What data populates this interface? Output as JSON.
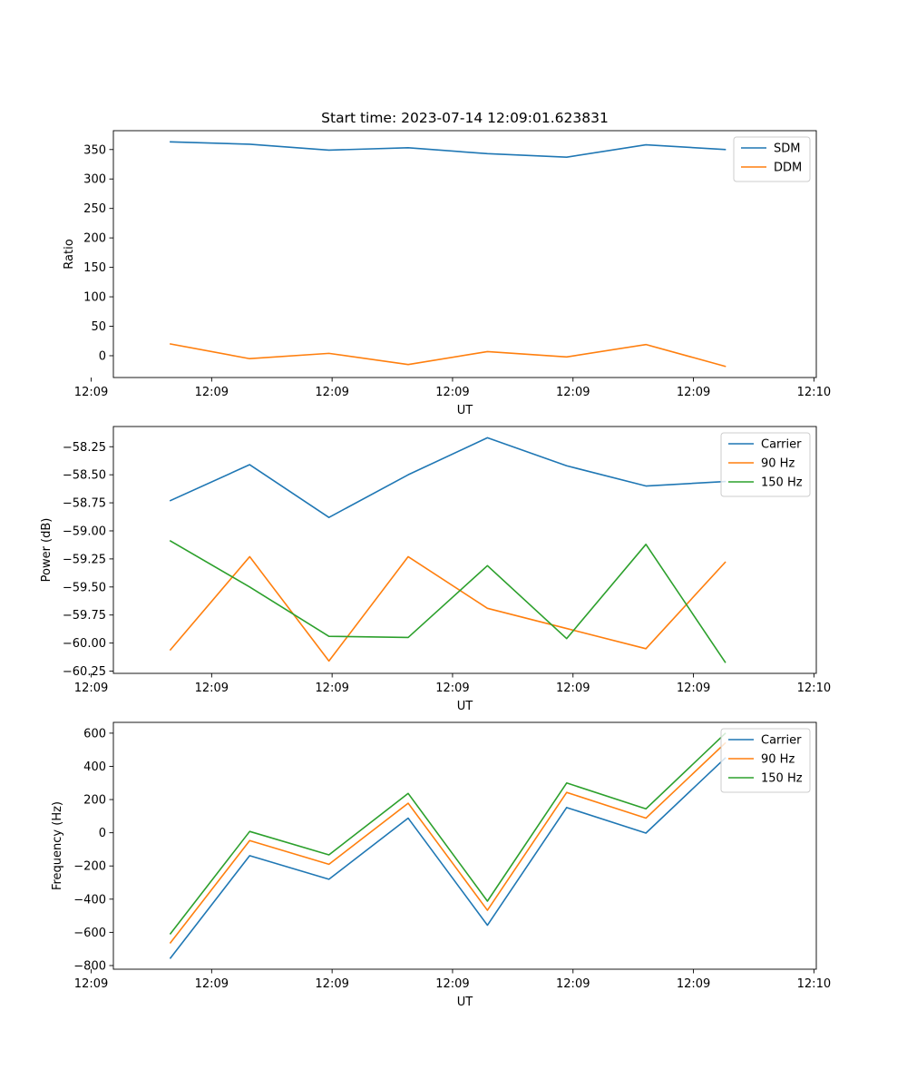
{
  "figure": {
    "title": "Start time: 2023-07-14 12:09:01.623831"
  },
  "colors": {
    "blue": "#1f77b4",
    "orange": "#ff7f0e",
    "green": "#2ca02c"
  },
  "chart_data": [
    {
      "type": "line",
      "title": "Start time: 2023-07-14 12:09:01.623831",
      "xlabel": "UT",
      "ylabel": "Ratio",
      "x": [
        1,
        2,
        3,
        4,
        5,
        6,
        7,
        8
      ],
      "xlim": [
        0.28,
        9.15
      ],
      "xticks": [
        {
          "value": 0,
          "label": "12:09"
        },
        {
          "value": 1.52,
          "label": "12:09"
        },
        {
          "value": 3.04,
          "label": "12:09"
        },
        {
          "value": 4.56,
          "label": "12:09"
        },
        {
          "value": 6.08,
          "label": "12:09"
        },
        {
          "value": 7.6,
          "label": "12:09"
        },
        {
          "value": 9.12,
          "label": "12:10"
        }
      ],
      "ylim": [
        -37,
        382
      ],
      "yticks": [
        {
          "value": 0,
          "label": "0"
        },
        {
          "value": 50,
          "label": "50"
        },
        {
          "value": 100,
          "label": "100"
        },
        {
          "value": 150,
          "label": "150"
        },
        {
          "value": 200,
          "label": "200"
        },
        {
          "value": 250,
          "label": "250"
        },
        {
          "value": 300,
          "label": "300"
        },
        {
          "value": 350,
          "label": "350"
        }
      ],
      "legend": "top-right",
      "series": [
        {
          "name": "SDM",
          "color": "#1f77b4",
          "values": [
            363,
            359,
            349,
            353,
            343,
            337,
            358,
            350
          ]
        },
        {
          "name": "DDM",
          "color": "#ff7f0e",
          "values": [
            20,
            -5,
            4,
            -15,
            7,
            -2,
            19,
            -18
          ]
        }
      ]
    },
    {
      "type": "line",
      "xlabel": "UT",
      "ylabel": "Power (dB)",
      "x": [
        1,
        2,
        3,
        4,
        5,
        6,
        7,
        8
      ],
      "xlim": [
        0.28,
        9.15
      ],
      "xticks": [
        {
          "value": 0,
          "label": "12:09"
        },
        {
          "value": 1.52,
          "label": "12:09"
        },
        {
          "value": 3.04,
          "label": "12:09"
        },
        {
          "value": 4.56,
          "label": "12:09"
        },
        {
          "value": 6.08,
          "label": "12:09"
        },
        {
          "value": 7.6,
          "label": "12:09"
        },
        {
          "value": 9.12,
          "label": "12:10"
        }
      ],
      "ylim": [
        -60.27,
        -58.07
      ],
      "yticks": [
        {
          "value": -60.25,
          "label": "−60.25"
        },
        {
          "value": -60.0,
          "label": "−60.00"
        },
        {
          "value": -59.75,
          "label": "−59.75"
        },
        {
          "value": -59.5,
          "label": "−59.50"
        },
        {
          "value": -59.25,
          "label": "−59.25"
        },
        {
          "value": -59.0,
          "label": "−59.00"
        },
        {
          "value": -58.75,
          "label": "−58.75"
        },
        {
          "value": -58.5,
          "label": "−58.50"
        },
        {
          "value": -58.25,
          "label": "−58.25"
        }
      ],
      "legend": "top-right",
      "series": [
        {
          "name": "Carrier",
          "color": "#1f77b4",
          "values": [
            -58.73,
            -58.41,
            -58.88,
            -58.5,
            -58.17,
            -58.42,
            -58.6,
            -58.56
          ]
        },
        {
          "name": "90 Hz",
          "color": "#ff7f0e",
          "values": [
            -60.06,
            -59.23,
            -60.16,
            -59.23,
            -59.69,
            -59.87,
            -60.05,
            -59.28
          ]
        },
        {
          "name": "150 Hz",
          "color": "#2ca02c",
          "values": [
            -59.09,
            -59.5,
            -59.94,
            -59.95,
            -59.31,
            -59.96,
            -59.12,
            -60.17
          ]
        }
      ]
    },
    {
      "type": "line",
      "xlabel": "UT",
      "ylabel": "Frequency (Hz)",
      "x": [
        1,
        2,
        3,
        4,
        5,
        6,
        7,
        8
      ],
      "xlim": [
        0.28,
        9.15
      ],
      "xticks": [
        {
          "value": 0,
          "label": "12:09"
        },
        {
          "value": 1.52,
          "label": "12:09"
        },
        {
          "value": 3.04,
          "label": "12:09"
        },
        {
          "value": 4.56,
          "label": "12:09"
        },
        {
          "value": 6.08,
          "label": "12:09"
        },
        {
          "value": 7.6,
          "label": "12:09"
        },
        {
          "value": 9.12,
          "label": "12:10"
        }
      ],
      "ylim": [
        -822,
        665
      ],
      "yticks": [
        {
          "value": -800,
          "label": "−800"
        },
        {
          "value": -600,
          "label": "−600"
        },
        {
          "value": -400,
          "label": "−400"
        },
        {
          "value": -200,
          "label": "−200"
        },
        {
          "value": 0,
          "label": "0"
        },
        {
          "value": 200,
          "label": "200"
        },
        {
          "value": 400,
          "label": "400"
        },
        {
          "value": 600,
          "label": "600"
        }
      ],
      "legend": "top-right",
      "series": [
        {
          "name": "Carrier",
          "color": "#1f77b4",
          "values": [
            -755,
            -138,
            -280,
            88,
            -557,
            152,
            -2,
            450
          ]
        },
        {
          "name": "90 Hz",
          "color": "#ff7f0e",
          "values": [
            -663,
            -47,
            -190,
            178,
            -467,
            243,
            88,
            540
          ]
        },
        {
          "name": "150 Hz",
          "color": "#2ca02c",
          "values": [
            -608,
            8,
            -133,
            237,
            -412,
            300,
            144,
            598
          ]
        }
      ]
    }
  ]
}
